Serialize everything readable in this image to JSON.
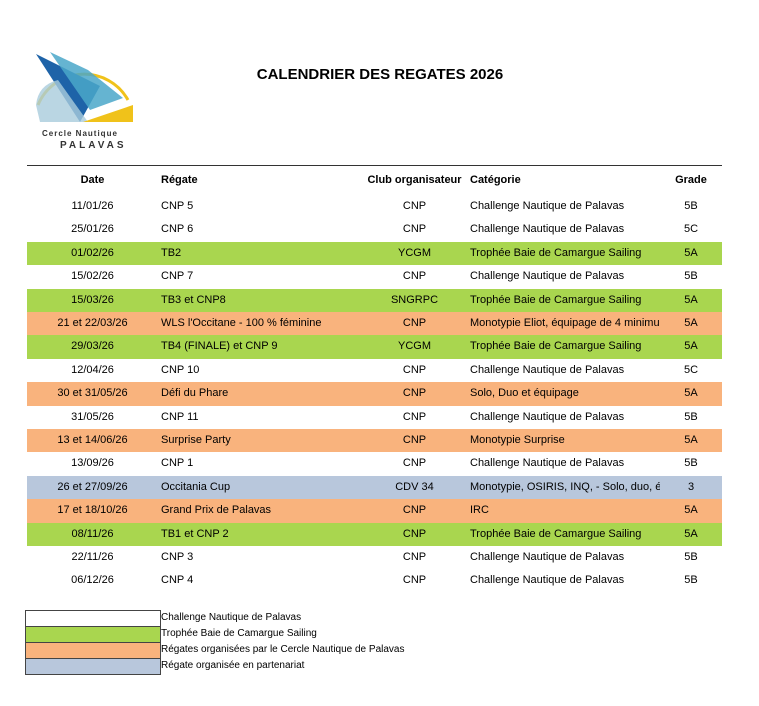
{
  "logo": {
    "line1": "Cercle Nautique",
    "line2": "PALAVAS"
  },
  "title": "CALENDRIER DES REGATES 2026",
  "table": {
    "headers": [
      "Date",
      "Régate",
      "Club organisateur",
      "Catégorie",
      "Grade"
    ],
    "rows": [
      {
        "cells": [
          "11/01/26",
          "CNP 5",
          "CNP",
          "Challenge Nautique de Palavas",
          "5B"
        ],
        "color": "#ffffff"
      },
      {
        "cells": [
          "25/01/26",
          "CNP 6",
          "CNP",
          "Challenge Nautique de Palavas",
          "5C"
        ],
        "color": "#ffffff"
      },
      {
        "cells": [
          "01/02/26",
          "TB2",
          "YCGM",
          "Trophée Baie de Camargue Sailing",
          "5A"
        ],
        "color": "#a9d64f"
      },
      {
        "cells": [
          "15/02/26",
          "CNP 7",
          "CNP",
          "Challenge Nautique de Palavas",
          "5B"
        ],
        "color": "#ffffff"
      },
      {
        "cells": [
          "15/03/26",
          "TB3 et CNP8",
          "SNGRPC",
          "Trophée Baie de Camargue Sailing",
          "5A"
        ],
        "color": "#a9d64f"
      },
      {
        "cells": [
          "21 et 22/03/26",
          "WLS l'Occitane  - 100 % féminine",
          "CNP",
          "Monotypie Eliot, équipage de 4 minimu",
          "5A"
        ],
        "color": "#f9b37d"
      },
      {
        "cells": [
          "29/03/26",
          "TB4 (FINALE) et CNP 9",
          "YCGM",
          "Trophée Baie de Camargue Sailing",
          "5A"
        ],
        "color": "#a9d64f"
      },
      {
        "cells": [
          "12/04/26",
          "CNP 10",
          "CNP",
          "Challenge Nautique de Palavas",
          "5C"
        ],
        "color": "#ffffff"
      },
      {
        "cells": [
          "30 et 31/05/26",
          "Défi du Phare",
          "CNP",
          "Solo, Duo et équipage",
          "5A"
        ],
        "color": "#f9b37d"
      },
      {
        "cells": [
          "31/05/26",
          "CNP 11",
          "CNP",
          "Challenge Nautique de Palavas",
          "5B"
        ],
        "color": "#ffffff"
      },
      {
        "cells": [
          "13 et 14/06/26",
          "Surprise Party",
          "CNP",
          "Monotypie Surprise",
          "5A"
        ],
        "color": "#f9b37d"
      },
      {
        "cells": [
          "13/09/26",
          "CNP 1",
          "CNP",
          "Challenge Nautique de Palavas",
          "5B"
        ],
        "color": "#ffffff"
      },
      {
        "cells": [
          "26 et 27/09/26",
          "Occitania Cup",
          "CDV 34",
          "Monotypie, OSIRIS, INQ, - Solo, duo, éq",
          "3"
        ],
        "color": "#b8c7dc"
      },
      {
        "cells": [
          "17 et 18/10/26",
          "Grand Prix de Palavas",
          "CNP",
          "IRC",
          "5A"
        ],
        "color": "#f9b37d"
      },
      {
        "cells": [
          "08/11/26",
          "TB1 et CNP 2",
          "CNP",
          "Trophée Baie de Camargue Sailing",
          "5A"
        ],
        "color": "#a9d64f"
      },
      {
        "cells": [
          "22/11/26",
          "CNP 3",
          "CNP",
          "Challenge Nautique de Palavas",
          "5B"
        ],
        "color": "#ffffff"
      },
      {
        "cells": [
          "06/12/26",
          "CNP 4",
          "CNP",
          "Challenge Nautique de Palavas",
          "5B"
        ],
        "color": "#ffffff"
      }
    ]
  },
  "legend": [
    {
      "label": "Challenge Nautique de Palavas",
      "color": "#ffffff"
    },
    {
      "label": "Trophée Baie de Camargue Sailing",
      "color": "#a9d64f"
    },
    {
      "label": "Régates organisées par le Cercle Nautique de Palavas",
      "color": "#f9b37d"
    },
    {
      "label": "Régate organisée en partenariat",
      "color": "#b8c7dc"
    }
  ]
}
